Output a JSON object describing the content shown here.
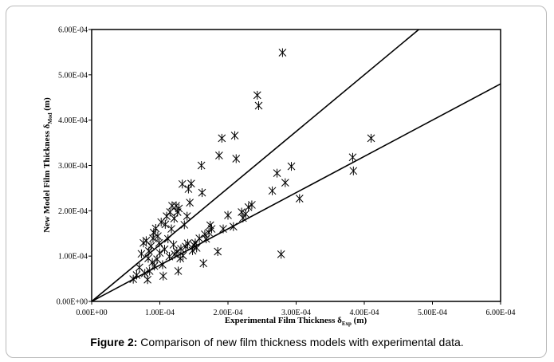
{
  "caption": {
    "label": "Figure 2:",
    "text": "Comparison of new film thickness models with experimental data."
  },
  "chart_data": {
    "type": "scatter",
    "xlabel": {
      "main": "Experimental Film Thickness δ",
      "sub": "Exp",
      "tail": " (m)"
    },
    "ylabel": {
      "main": "New Model Film Thickness δ",
      "sub": "Mod",
      "tail": " (m)"
    },
    "xlim": [
      0,
      0.0006
    ],
    "ylim": [
      0,
      0.0006
    ],
    "x_ticks": [
      0,
      0.0001,
      0.0002,
      0.0003,
      0.0004,
      0.0005,
      0.0006
    ],
    "y_ticks": [
      0,
      0.0001,
      0.0002,
      0.0003,
      0.0004,
      0.0005,
      0.0006
    ],
    "x_tick_labels": [
      "0.00E+00",
      "1.00E-04",
      "2.00E-04",
      "3.00E-04",
      "4.00E-04",
      "5.00E-04",
      "6.00E-04"
    ],
    "y_tick_labels": [
      "0.00E+00",
      "1.00E-04",
      "2.00E-04",
      "3.00E-04",
      "4.00E-04",
      "5.00E-04",
      "6.00E-04"
    ],
    "grid": false,
    "marker": "asterisk",
    "lines": [
      {
        "slope": 1.25
      },
      {
        "slope": 0.8
      }
    ],
    "points": [
      [
        6.1e-05,
        4.9e-05
      ],
      [
        6.6e-05,
        5.8e-05
      ],
      [
        7e-05,
        7.5e-05
      ],
      [
        7.3e-05,
        0.000105
      ],
      [
        7.6e-05,
        0.000129
      ],
      [
        7.8e-05,
        6.2e-05
      ],
      [
        8e-05,
        0.000134
      ],
      [
        8.2e-05,
        4.8e-05
      ],
      [
        8.3e-05,
        9.5e-05
      ],
      [
        8.4e-05,
        0.000111
      ],
      [
        8.5e-05,
        6.7e-05
      ],
      [
        8.7e-05,
        0.000122
      ],
      [
        8.9e-05,
        8.6e-05
      ],
      [
        9e-05,
        0.000139
      ],
      [
        9.1e-05,
        0.000152
      ],
      [
        9.2e-05,
        7.8e-05
      ],
      [
        9.4e-05,
        0.000161
      ],
      [
        9.6e-05,
        9.3e-05
      ],
      [
        9.7e-05,
        0.000144
      ],
      [
        9.9e-05,
        0.000129
      ],
      [
        0.0001,
        0.000107
      ],
      [
        0.000102,
        0.000175
      ],
      [
        0.000104,
        8.1e-05
      ],
      [
        0.000105,
        5.6e-05
      ],
      [
        0.000107,
        0.000115
      ],
      [
        0.000108,
        0.00017
      ],
      [
        0.00011,
        0.000188
      ],
      [
        0.000112,
        0.000138
      ],
      [
        0.000114,
        9.9e-05
      ],
      [
        0.000115,
        0.000197
      ],
      [
        0.000117,
        0.00016
      ],
      [
        0.000118,
        0.000211
      ],
      [
        0.00012,
        0.000125
      ],
      [
        0.000121,
        0.000183
      ],
      [
        0.000122,
        0.000104
      ],
      [
        0.000124,
        0.000211
      ],
      [
        0.000125,
        0.00011
      ],
      [
        0.000126,
        0.000197
      ],
      [
        0.000127,
        6.7e-05
      ],
      [
        0.000128,
        0.000205
      ],
      [
        0.00013,
        9.5e-05
      ],
      [
        0.000131,
        0.000116
      ],
      [
        0.000133,
        0.000259
      ],
      [
        0.000134,
        0.000101
      ],
      [
        0.000136,
        0.000169
      ],
      [
        0.000138,
        0.000121
      ],
      [
        0.00014,
        0.000188
      ],
      [
        0.000141,
        0.000128
      ],
      [
        0.000142,
        0.000248
      ],
      [
        0.000144,
        0.000218
      ],
      [
        0.000146,
        0.00026
      ],
      [
        0.000148,
        0.000112
      ],
      [
        0.00015,
        0.000124
      ],
      [
        0.000152,
        0.000129
      ],
      [
        0.000154,
        0.000118
      ],
      [
        0.000158,
        0.000139
      ],
      [
        0.000161,
        0.0003
      ],
      [
        0.000162,
        0.00024
      ],
      [
        0.000164,
        8.4e-05
      ],
      [
        0.000166,
        0.000148
      ],
      [
        0.000168,
        0.000138
      ],
      [
        0.000172,
        0.000152
      ],
      [
        0.000174,
        0.000168
      ],
      [
        0.000176,
        0.00016
      ],
      [
        0.000185,
        0.00011
      ],
      [
        0.000187,
        0.000322
      ],
      [
        0.000191,
        0.00036
      ],
      [
        0.000193,
        0.00016
      ],
      [
        0.0002,
        0.00019
      ],
      [
        0.000208,
        0.000165
      ],
      [
        0.00021,
        0.000366
      ],
      [
        0.000212,
        0.000315
      ],
      [
        0.00022,
        0.000197
      ],
      [
        0.000222,
        0.000184
      ],
      [
        0.000226,
        0.000193
      ],
      [
        0.00023,
        0.000208
      ],
      [
        0.000235,
        0.000213
      ],
      [
        0.000243,
        0.000455
      ],
      [
        0.000245,
        0.000432
      ],
      [
        0.000265,
        0.000244
      ],
      [
        0.000272,
        0.000283
      ],
      [
        0.000278,
        0.000104
      ],
      [
        0.00028,
        0.000549
      ],
      [
        0.000284,
        0.000262
      ],
      [
        0.000293,
        0.000298
      ],
      [
        0.000305,
        0.000227
      ],
      [
        0.000383,
        0.000318
      ],
      [
        0.000384,
        0.000288
      ],
      [
        0.00041,
        0.00036
      ]
    ]
  }
}
